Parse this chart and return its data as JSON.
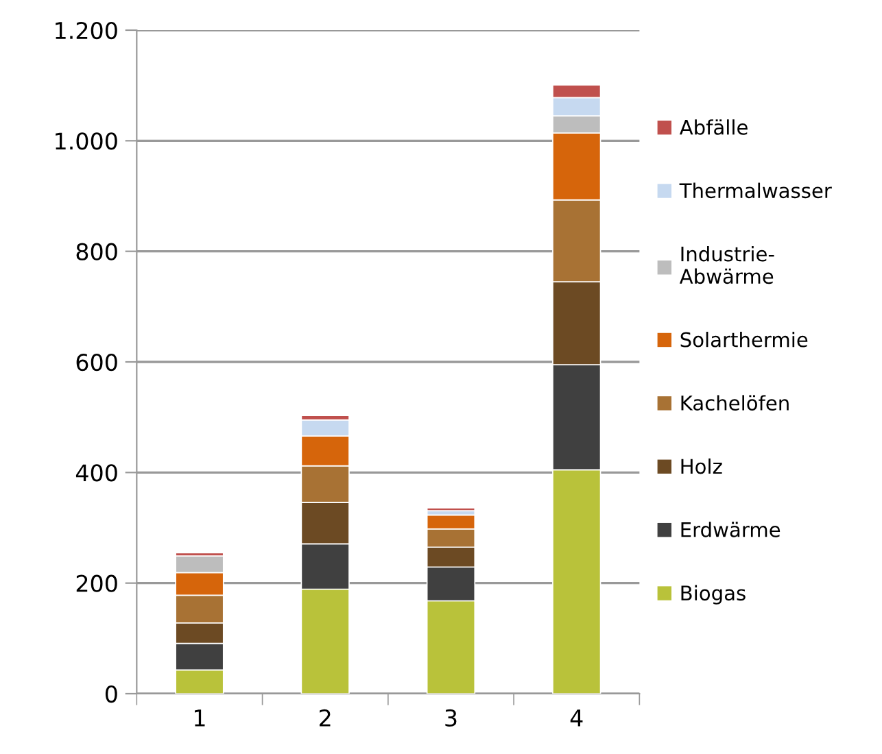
{
  "chart_data": {
    "type": "bar",
    "stacked": true,
    "categories": [
      "1",
      "2",
      "3",
      "4"
    ],
    "series": [
      {
        "name": "Biogas",
        "color": "#b9c23a",
        "values": [
          43,
          189,
          168,
          405
        ]
      },
      {
        "name": "Erdwärme",
        "color": "#404040",
        "values": [
          48,
          82,
          61,
          190
        ]
      },
      {
        "name": "Holz",
        "color": "#6c4a23",
        "values": [
          37,
          75,
          36,
          150
        ]
      },
      {
        "name": "Kachelöfen",
        "color": "#a87234",
        "values": [
          50,
          66,
          33,
          148
        ]
      },
      {
        "name": "Solarthermie",
        "color": "#d6650b",
        "values": [
          41,
          54,
          25,
          121
        ]
      },
      {
        "name": "Industrie-\nAbwärme",
        "color": "#bdbdbd",
        "values": [
          30,
          0,
          0,
          31
        ]
      },
      {
        "name": "Thermalwasser",
        "color": "#c6d9f0",
        "values": [
          0,
          29,
          8,
          33
        ]
      },
      {
        "name": "Abfälle",
        "color": "#c0504d",
        "values": [
          6,
          8,
          5,
          23
        ]
      }
    ],
    "ylim": [
      0,
      1200
    ],
    "yticks": [
      0,
      200,
      400,
      600,
      800,
      {
        "value": 1000,
        "label": "1.000"
      },
      {
        "value": 1200,
        "label": "1.200"
      }
    ],
    "grid": "y",
    "legend": "right"
  }
}
